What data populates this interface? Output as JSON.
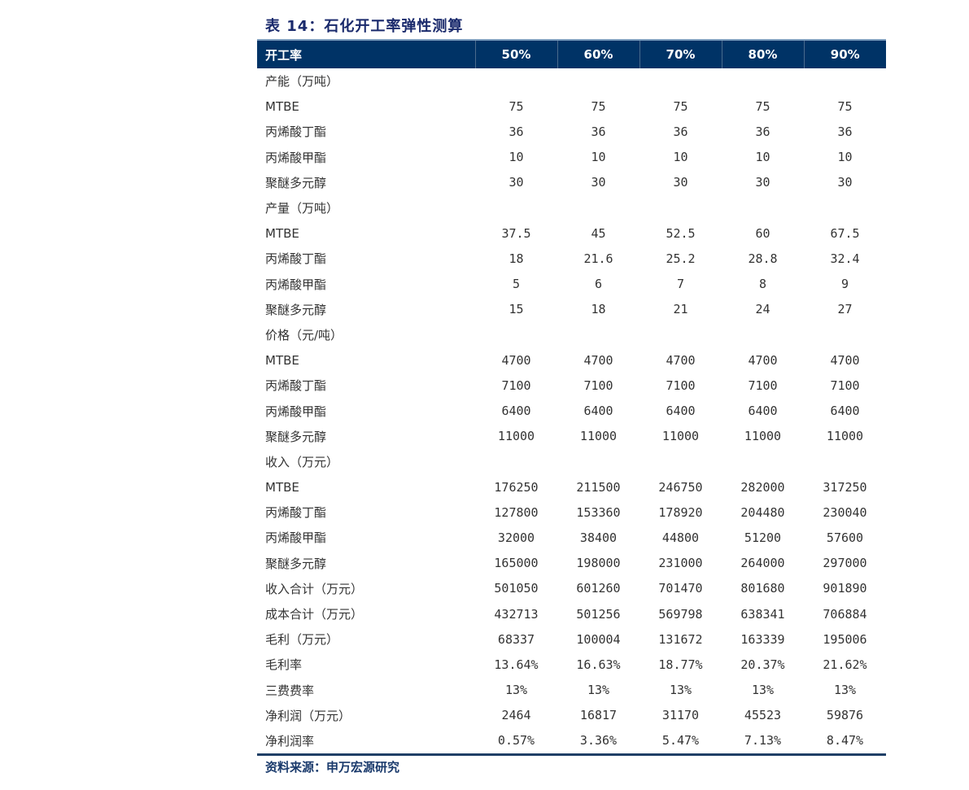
{
  "title": "表 14：石化开工率弹性测算",
  "header": [
    "开工率",
    "50%",
    "60%",
    "70%",
    "80%",
    "90%"
  ],
  "rows": [
    [
      "产能（万吨）",
      "",
      "",
      "",
      "",
      ""
    ],
    [
      "MTBE",
      "75",
      "75",
      "75",
      "75",
      "75"
    ],
    [
      "丙烯酸丁酯",
      "36",
      "36",
      "36",
      "36",
      "36"
    ],
    [
      "丙烯酸甲酯",
      "10",
      "10",
      "10",
      "10",
      "10"
    ],
    [
      "聚醚多元醇",
      "30",
      "30",
      "30",
      "30",
      "30"
    ],
    [
      "产量（万吨）",
      "",
      "",
      "",
      "",
      ""
    ],
    [
      "MTBE",
      "37.5",
      "45",
      "52.5",
      "60",
      "67.5"
    ],
    [
      "丙烯酸丁酯",
      "18",
      "21.6",
      "25.2",
      "28.8",
      "32.4"
    ],
    [
      "丙烯酸甲酯",
      "5",
      "6",
      "7",
      "8",
      "9"
    ],
    [
      "聚醚多元醇",
      "15",
      "18",
      "21",
      "24",
      "27"
    ],
    [
      "价格（元/吨）",
      "",
      "",
      "",
      "",
      ""
    ],
    [
      "MTBE",
      "4700",
      "4700",
      "4700",
      "4700",
      "4700"
    ],
    [
      "丙烯酸丁酯",
      "7100",
      "7100",
      "7100",
      "7100",
      "7100"
    ],
    [
      "丙烯酸甲酯",
      "6400",
      "6400",
      "6400",
      "6400",
      "6400"
    ],
    [
      "聚醚多元醇",
      "11000",
      "11000",
      "11000",
      "11000",
      "11000"
    ],
    [
      "收入（万元）",
      "",
      "",
      "",
      "",
      ""
    ],
    [
      "MTBE",
      "176250",
      "211500",
      "246750",
      "282000",
      "317250"
    ],
    [
      "丙烯酸丁酯",
      "127800",
      "153360",
      "178920",
      "204480",
      "230040"
    ],
    [
      "丙烯酸甲酯",
      "32000",
      "38400",
      "44800",
      "51200",
      "57600"
    ],
    [
      "聚醚多元醇",
      "165000",
      "198000",
      "231000",
      "264000",
      "297000"
    ],
    [
      "收入合计（万元）",
      "501050",
      "601260",
      "701470",
      "801680",
      "901890"
    ],
    [
      "成本合计（万元）",
      "432713",
      "501256",
      "569798",
      "638341",
      "706884"
    ],
    [
      "毛利（万元）",
      "68337",
      "100004",
      "131672",
      "163339",
      "195006"
    ],
    [
      "毛利率",
      "13.64%",
      "16.63%",
      "18.77%",
      "20.37%",
      "21.62%"
    ],
    [
      "三费费率",
      "13%",
      "13%",
      "13%",
      "13%",
      "13%"
    ],
    [
      "净利润（万元）",
      "2464",
      "16817",
      "31170",
      "45523",
      "59876"
    ],
    [
      "净利润率",
      "0.57%",
      "3.36%",
      "5.47%",
      "7.13%",
      "8.47%"
    ]
  ],
  "source": "资料来源：申万宏源研究",
  "colors": {
    "header_bg": "#003366",
    "title": "#1a2a6c"
  }
}
